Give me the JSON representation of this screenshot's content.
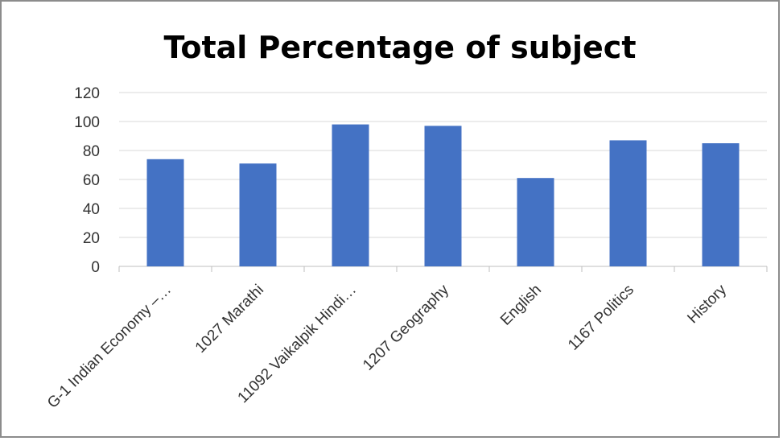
{
  "chart_data": {
    "type": "bar",
    "title": "Total Percentage of subject",
    "categories": [
      "G-1 Indian Economy –…",
      "1027 Marathi",
      "11092 Vaikalpik Hindi…",
      "1207 Geography",
      "English",
      "1167 Politics",
      "History"
    ],
    "values": [
      74,
      71,
      98,
      97,
      61,
      87,
      85
    ],
    "xlabel": "",
    "ylabel": "",
    "ylim": [
      0,
      120
    ],
    "yticks": [
      0,
      20,
      40,
      60,
      80,
      100,
      120
    ],
    "grid": true,
    "legend": "none",
    "bar_color": "#4472C4",
    "grid_color": "#d9d9d9",
    "axis_color": "#bfbfbf"
  }
}
